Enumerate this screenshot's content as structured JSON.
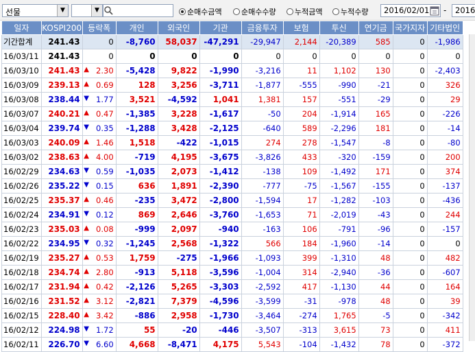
{
  "toolbar": {
    "market_select": "선물",
    "radio_options": [
      "순매수금액",
      "순매수수량",
      "누적금액",
      "누적수량"
    ],
    "radio_selected": 0,
    "start_date": "2016/02/01",
    "date_separator": "-",
    "end_date": "2016/"
  },
  "columns": [
    "일자",
    "KOSPI200",
    "등락폭",
    "개인",
    "외국인",
    "기관",
    "금융투자",
    "보험",
    "투신",
    "연기금",
    "국가지자",
    "기타법인"
  ],
  "rows": [
    {
      "date": "기간합계",
      "kospi": "241.43",
      "kdir": "",
      "chg": "0",
      "indiv": "-8,760",
      "foreign": "58,037",
      "inst": "-47,291",
      "fin": "-29,947",
      "ins": "2,144",
      "inv": "-20,389",
      "pen": "585",
      "gov": "0",
      "etc": "-1,986",
      "total": true
    },
    {
      "date": "16/03/11",
      "kospi": "241.43",
      "kdir": "",
      "chg": "0",
      "indiv": "0",
      "foreign": "0",
      "inst": "0",
      "fin": "0",
      "ins": "0",
      "inv": "0",
      "pen": "0",
      "gov": "0",
      "etc": "0"
    },
    {
      "date": "16/03/10",
      "kospi": "241.43",
      "kdir": "up",
      "chg": "2.30",
      "indiv": "-5,428",
      "foreign": "9,822",
      "inst": "-1,990",
      "fin": "-3,216",
      "ins": "11",
      "inv": "1,102",
      "pen": "130",
      "gov": "0",
      "etc": "-2,403"
    },
    {
      "date": "16/03/09",
      "kospi": "239.13",
      "kdir": "up",
      "chg": "0.69",
      "indiv": "128",
      "foreign": "3,256",
      "inst": "-3,711",
      "fin": "-1,877",
      "ins": "-555",
      "inv": "-990",
      "pen": "-21",
      "gov": "0",
      "etc": "326"
    },
    {
      "date": "16/03/08",
      "kospi": "238.44",
      "kdir": "down",
      "chg": "1.77",
      "indiv": "3,521",
      "foreign": "-4,592",
      "inst": "1,041",
      "fin": "1,381",
      "ins": "157",
      "inv": "-551",
      "pen": "-29",
      "gov": "0",
      "etc": "29"
    },
    {
      "date": "16/03/07",
      "kospi": "240.21",
      "kdir": "up",
      "chg": "0.47",
      "indiv": "-1,385",
      "foreign": "3,228",
      "inst": "-1,617",
      "fin": "-50",
      "ins": "204",
      "inv": "-1,914",
      "pen": "165",
      "gov": "0",
      "etc": "-226"
    },
    {
      "date": "16/03/04",
      "kospi": "239.74",
      "kdir": "down",
      "chg": "0.35",
      "indiv": "-1,288",
      "foreign": "3,428",
      "inst": "-2,125",
      "fin": "-640",
      "ins": "589",
      "inv": "-2,296",
      "pen": "181",
      "gov": "0",
      "etc": "-14"
    },
    {
      "date": "16/03/03",
      "kospi": "240.09",
      "kdir": "up",
      "chg": "1.46",
      "indiv": "1,518",
      "foreign": "-422",
      "inst": "-1,015",
      "fin": "274",
      "ins": "278",
      "inv": "-1,547",
      "pen": "-8",
      "gov": "0",
      "etc": "-80"
    },
    {
      "date": "16/03/02",
      "kospi": "238.63",
      "kdir": "up",
      "chg": "4.00",
      "indiv": "-719",
      "foreign": "4,195",
      "inst": "-3,675",
      "fin": "-3,826",
      "ins": "433",
      "inv": "-320",
      "pen": "-159",
      "gov": "0",
      "etc": "200"
    },
    {
      "date": "16/02/29",
      "kospi": "234.63",
      "kdir": "down",
      "chg": "0.59",
      "indiv": "-1,035",
      "foreign": "2,073",
      "inst": "-1,412",
      "fin": "-138",
      "ins": "109",
      "inv": "-1,492",
      "pen": "171",
      "gov": "0",
      "etc": "374"
    },
    {
      "date": "16/02/26",
      "kospi": "235.22",
      "kdir": "down",
      "chg": "0.15",
      "indiv": "636",
      "foreign": "1,891",
      "inst": "-2,390",
      "fin": "-777",
      "ins": "-75",
      "inv": "-1,567",
      "pen": "-155",
      "gov": "0",
      "etc": "-137"
    },
    {
      "date": "16/02/25",
      "kospi": "235.37",
      "kdir": "up",
      "chg": "0.46",
      "indiv": "-235",
      "foreign": "3,472",
      "inst": "-2,800",
      "fin": "-1,594",
      "ins": "17",
      "inv": "-1,282",
      "pen": "-103",
      "gov": "0",
      "etc": "-436"
    },
    {
      "date": "16/02/24",
      "kospi": "234.91",
      "kdir": "down",
      "chg": "0.12",
      "indiv": "869",
      "foreign": "2,646",
      "inst": "-3,760",
      "fin": "-1,653",
      "ins": "71",
      "inv": "-2,019",
      "pen": "-43",
      "gov": "0",
      "etc": "244"
    },
    {
      "date": "16/02/23",
      "kospi": "235.03",
      "kdir": "up",
      "chg": "0.08",
      "indiv": "-999",
      "foreign": "2,097",
      "inst": "-940",
      "fin": "-163",
      "ins": "106",
      "inv": "-791",
      "pen": "-96",
      "gov": "0",
      "etc": "-157"
    },
    {
      "date": "16/02/22",
      "kospi": "234.95",
      "kdir": "down",
      "chg": "0.32",
      "indiv": "-1,245",
      "foreign": "2,568",
      "inst": "-1,322",
      "fin": "566",
      "ins": "184",
      "inv": "-1,960",
      "pen": "-14",
      "gov": "0",
      "etc": "0"
    },
    {
      "date": "16/02/19",
      "kospi": "235.27",
      "kdir": "up",
      "chg": "0.53",
      "indiv": "1,759",
      "foreign": "-275",
      "inst": "-1,966",
      "fin": "-1,093",
      "ins": "399",
      "inv": "-1,310",
      "pen": "48",
      "gov": "0",
      "etc": "482"
    },
    {
      "date": "16/02/18",
      "kospi": "234.74",
      "kdir": "up",
      "chg": "2.80",
      "indiv": "-913",
      "foreign": "5,118",
      "inst": "-3,596",
      "fin": "-1,004",
      "ins": "314",
      "inv": "-2,940",
      "pen": "-36",
      "gov": "0",
      "etc": "-607"
    },
    {
      "date": "16/02/17",
      "kospi": "231.94",
      "kdir": "up",
      "chg": "0.42",
      "indiv": "-2,126",
      "foreign": "5,265",
      "inst": "-3,303",
      "fin": "-2,592",
      "ins": "417",
      "inv": "-1,130",
      "pen": "44",
      "gov": "0",
      "etc": "164"
    },
    {
      "date": "16/02/16",
      "kospi": "231.52",
      "kdir": "up",
      "chg": "3.12",
      "indiv": "-2,821",
      "foreign": "7,379",
      "inst": "-4,596",
      "fin": "-3,599",
      "ins": "-31",
      "inv": "-978",
      "pen": "48",
      "gov": "0",
      "etc": "39"
    },
    {
      "date": "16/02/15",
      "kospi": "228.40",
      "kdir": "up",
      "chg": "3.42",
      "indiv": "-886",
      "foreign": "2,958",
      "inst": "-1,730",
      "fin": "-3,464",
      "ins": "-274",
      "inv": "1,765",
      "pen": "-5",
      "gov": "0",
      "etc": "-342"
    },
    {
      "date": "16/02/12",
      "kospi": "224.98",
      "kdir": "down",
      "chg": "1.72",
      "indiv": "55",
      "foreign": "-20",
      "inst": "-446",
      "fin": "-3,507",
      "ins": "-313",
      "inv": "3,615",
      "pen": "73",
      "gov": "0",
      "etc": "411"
    },
    {
      "date": "16/02/11",
      "kospi": "226.70",
      "kdir": "down",
      "chg": "6.60",
      "indiv": "4,668",
      "foreign": "-8,471",
      "inst": "4,175",
      "fin": "5,543",
      "ins": "-104",
      "inv": "-1,432",
      "pen": "78",
      "gov": "0",
      "etc": "-372"
    }
  ],
  "colors": {
    "header_bg": "#6b8fc6",
    "total_bg": "#dce6f2",
    "up": "#e00000",
    "down": "#0000cc"
  }
}
